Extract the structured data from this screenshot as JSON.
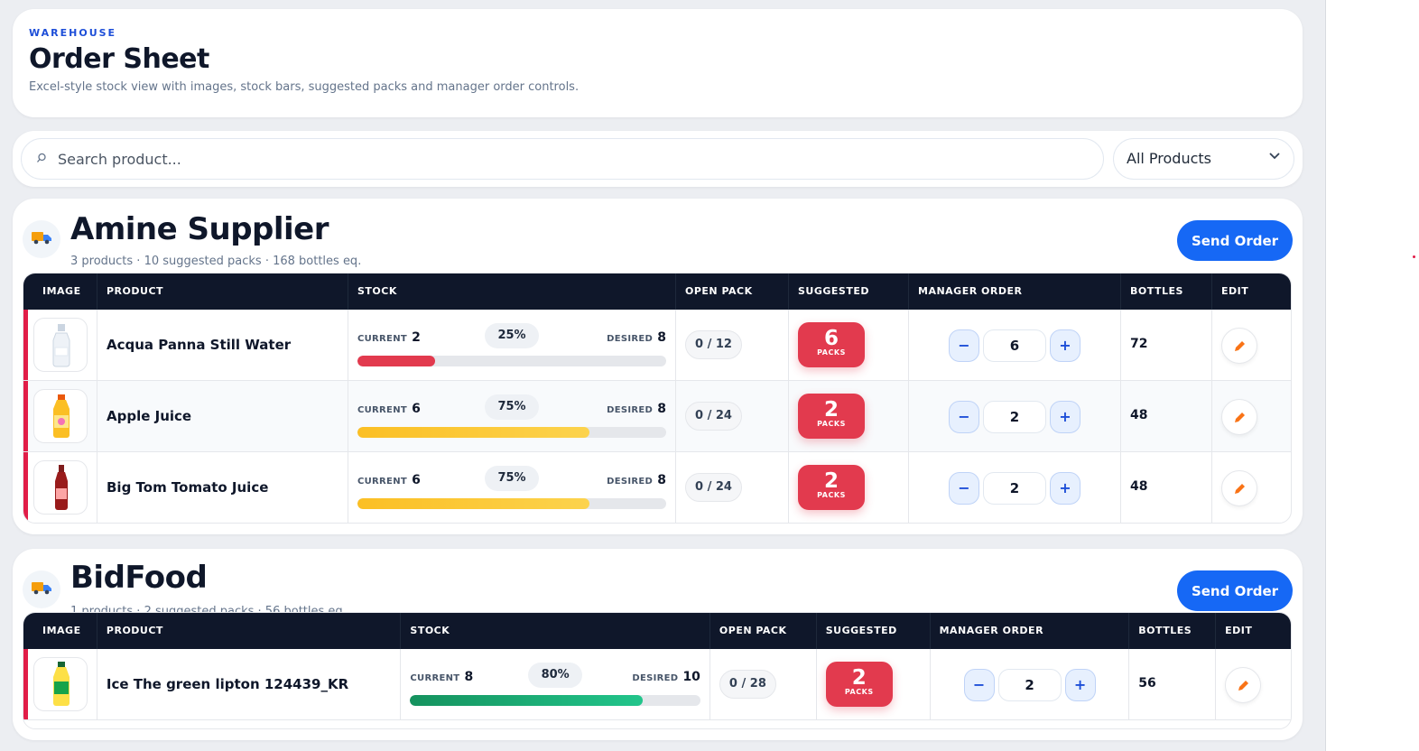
{
  "header": {
    "kicker": "WAREHOUSE",
    "title": "Order Sheet",
    "subtitle": "Excel-style stock view with images, stock bars, suggested packs and manager order controls."
  },
  "search": {
    "placeholder": "Search product...",
    "filter_value": "All Products"
  },
  "table_headers": [
    "IMAGE",
    "PRODUCT",
    "STOCK",
    "OPEN PACK",
    "SUGGESTED",
    "MANAGER ORDER",
    "BOTTLES",
    "EDIT"
  ],
  "labels": {
    "current": "CURRENT",
    "desired": "DESIRED",
    "packs": "PACKS",
    "minus": "−",
    "plus": "+"
  },
  "suppliers": [
    {
      "name": "Amine Supplier",
      "meta": "3 products · 10 suggested packs · 168 bottles eq.",
      "send_label": "Send Order",
      "rows": [
        {
          "product": "Acqua Panna Still Water",
          "current": "2",
          "desired": "8",
          "percent": "25%",
          "fill": 0.25,
          "level": "red",
          "open_pack": "0 / 12",
          "suggested": "6",
          "order": "6",
          "bottles": "72"
        },
        {
          "product": "Apple Juice",
          "current": "6",
          "desired": "8",
          "percent": "75%",
          "fill": 0.75,
          "level": "yellow",
          "open_pack": "0 / 24",
          "suggested": "2",
          "order": "2",
          "bottles": "48"
        },
        {
          "product": "Big Tom Tomato Juice",
          "current": "6",
          "desired": "8",
          "percent": "75%",
          "fill": 0.75,
          "level": "yellow",
          "open_pack": "0 / 24",
          "suggested": "2",
          "order": "2",
          "bottles": "48"
        }
      ]
    },
    {
      "name": "BidFood",
      "meta": "1 products · 2 suggested packs · 56 bottles eq.",
      "send_label": "Send Order",
      "rows": [
        {
          "product": "Ice The green lipton 124439_KR",
          "current": "8",
          "desired": "10",
          "percent": "80%",
          "fill": 0.8,
          "level": "green",
          "open_pack": "0 / 28",
          "suggested": "2",
          "order": "2",
          "bottles": "56"
        }
      ]
    }
  ],
  "colors": {
    "accent": "#1668f5",
    "danger": "#e23a4e",
    "warning": "#fbbf24",
    "success": "#15925e",
    "header_bg": "#0f172a"
  },
  "icons": {
    "supplier": "delivery-truck-icon",
    "search": "search-icon",
    "edit": "pencil-icon",
    "dropdown": "chevron-down-icon"
  }
}
